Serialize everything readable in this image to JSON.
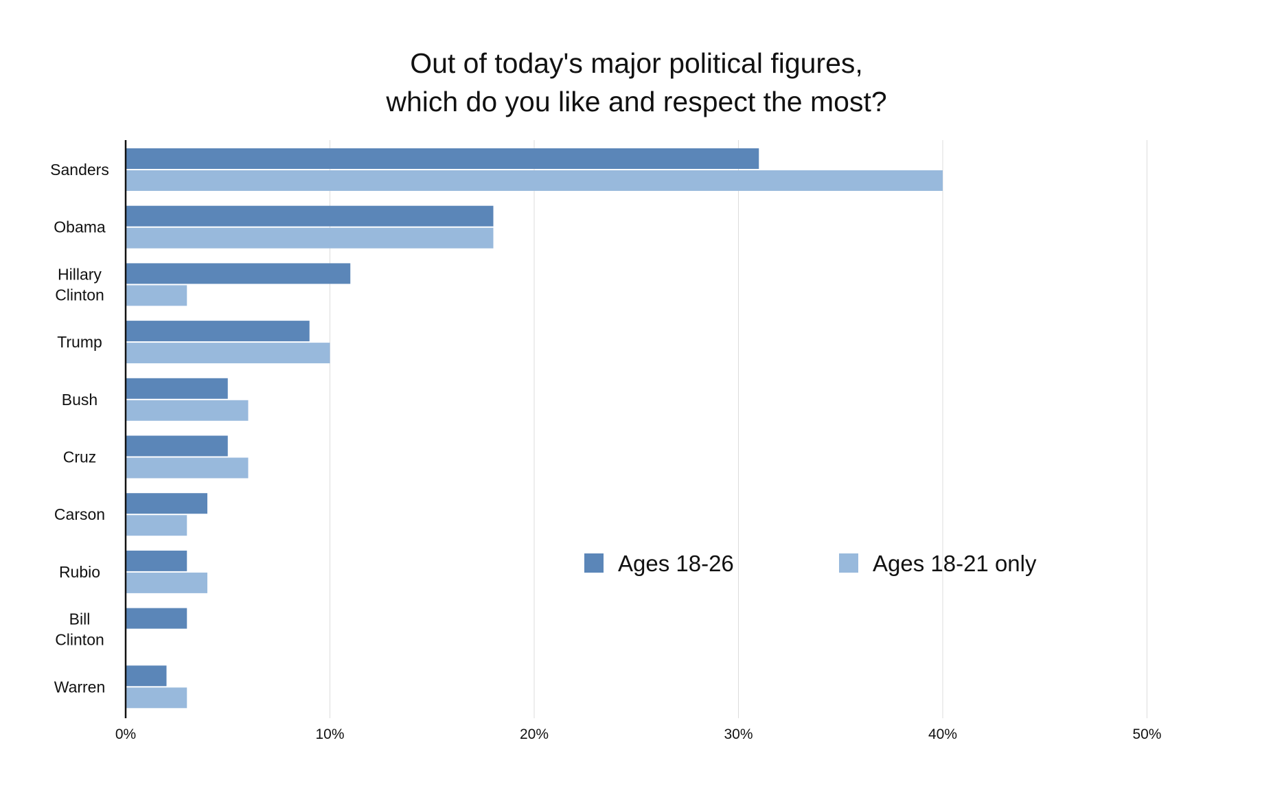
{
  "chart_data": {
    "type": "bar",
    "orientation": "horizontal",
    "title": [
      "Out of today's major political figures,",
      "which do you like and respect the most?"
    ],
    "categories": [
      [
        "Sanders"
      ],
      [
        "Obama"
      ],
      [
        "Hillary",
        "Clinton"
      ],
      [
        "Trump"
      ],
      [
        "Bush"
      ],
      [
        "Cruz"
      ],
      [
        "Carson"
      ],
      [
        "Rubio"
      ],
      [
        "Bill",
        "Clinton"
      ],
      [
        "Warren"
      ]
    ],
    "series": [
      {
        "name": "Ages 18-26",
        "color": "#5b86b8",
        "values": [
          31,
          18,
          11,
          9,
          5,
          5,
          4,
          3,
          3,
          2
        ]
      },
      {
        "name": "Ages 18-21 only",
        "color": "#98b9dc",
        "values": [
          40,
          18,
          3,
          10,
          6,
          6,
          3,
          4,
          0,
          3
        ]
      }
    ],
    "xlim": [
      0,
      50
    ],
    "x_ticks": [
      0,
      10,
      20,
      30,
      40,
      50
    ],
    "x_tick_labels": [
      "0%",
      "10%",
      "20%",
      "30%",
      "40%",
      "50%"
    ],
    "xlabel": "",
    "ylabel": "",
    "grid": "vertical",
    "legend_position": "center-right"
  }
}
